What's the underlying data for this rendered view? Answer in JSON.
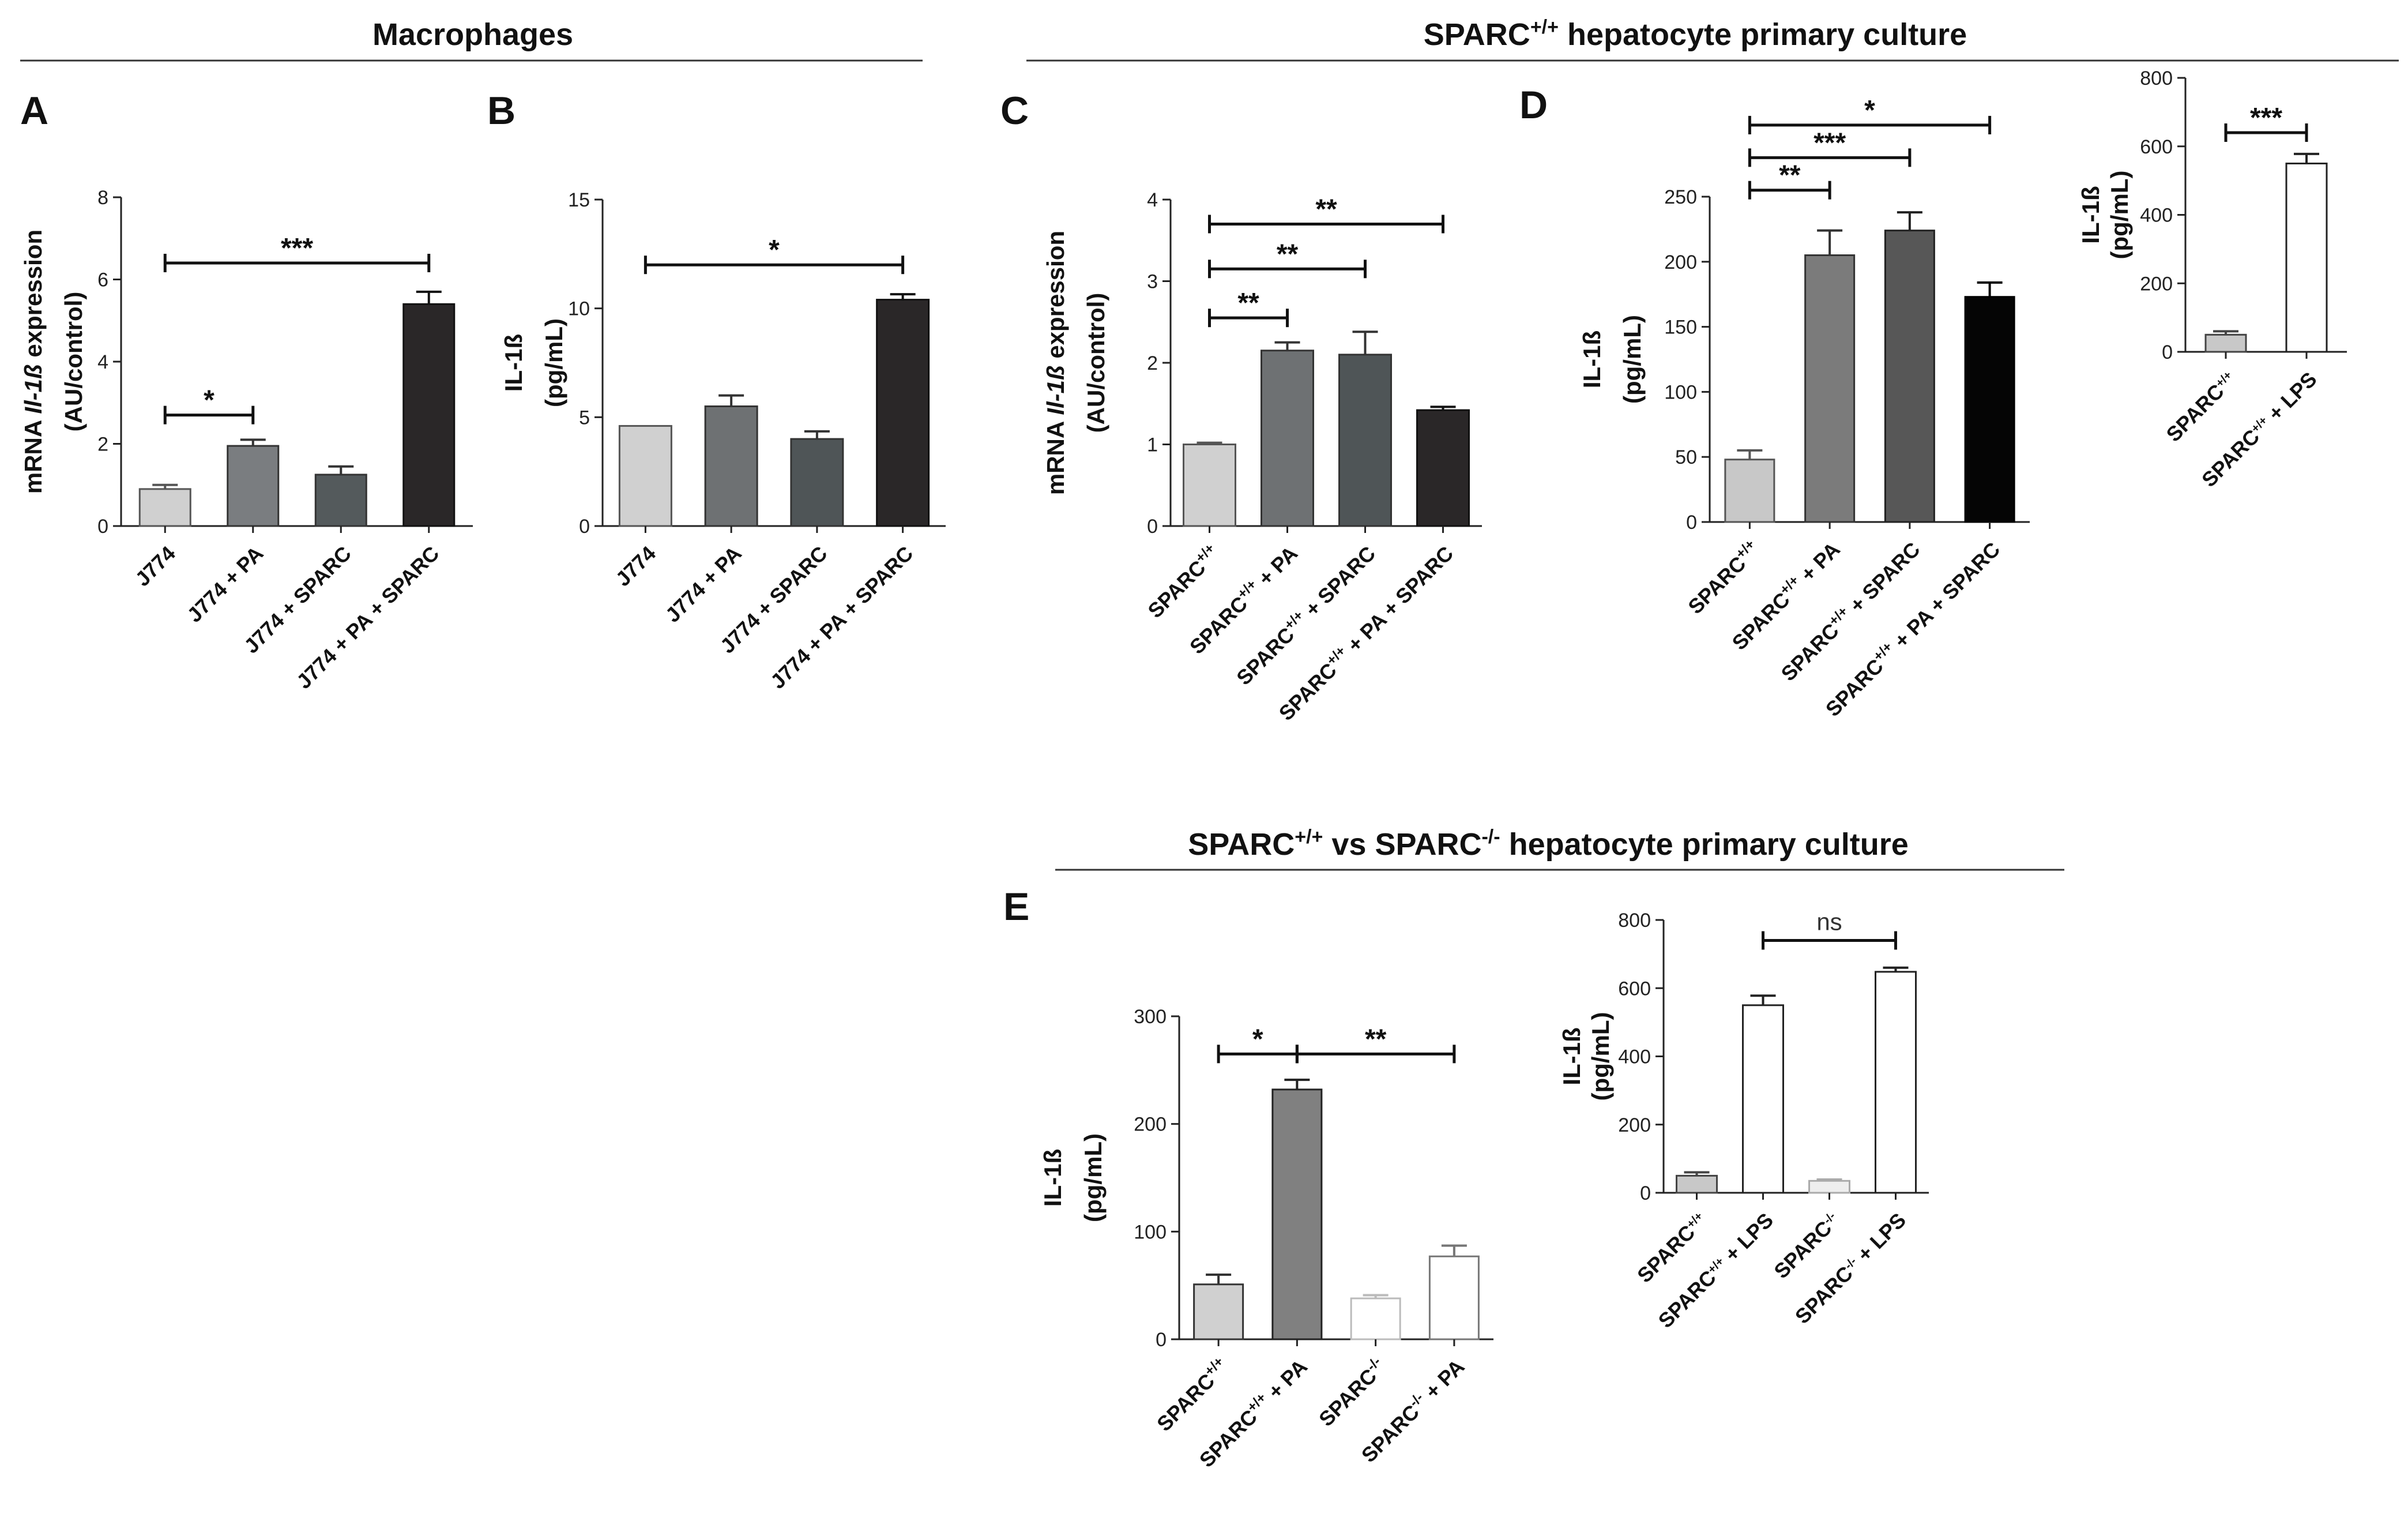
{
  "section_titles": {
    "macrophages": "Macrophages",
    "hepatocyte_pos": [
      "SPARC",
      "+/+",
      " hepatocyte primary culture"
    ],
    "hepatocyte_vs": [
      "SPARC",
      "+/+",
      " vs SPARC",
      "-/-",
      " hepatocyte primary culture"
    ]
  },
  "chart_data": [
    {
      "id": "A",
      "type": "bar",
      "panel_label": "A",
      "ylabel_lines": [
        [
          "mRNA ",
          "Il-1ß",
          " expression"
        ],
        [
          "(AU/control)"
        ]
      ],
      "ylim": [
        0,
        8
      ],
      "yticks": [
        0,
        2,
        4,
        6,
        8
      ],
      "categories": [
        [
          "J774"
        ],
        [
          "J774 + PA"
        ],
        [
          "J774 + SPARC"
        ],
        [
          "J774 + PA + SPARC"
        ]
      ],
      "values": [
        0.9,
        1.95,
        1.25,
        5.4
      ],
      "errors": [
        0.1,
        0.15,
        0.2,
        0.3
      ],
      "colors": [
        "#d0d0d0",
        "#7a7d80",
        "#545a5c",
        "#2a2728"
      ],
      "outline": [
        "#555",
        "#333",
        "#333",
        "#111"
      ],
      "significance": [
        {
          "from": 0,
          "to": 1,
          "y": 2.7,
          "label": "*"
        },
        {
          "from": 0,
          "to": 3,
          "y": 6.4,
          "label": "***"
        }
      ]
    },
    {
      "id": "B",
      "type": "bar",
      "panel_label": "B",
      "ylabel_lines": [
        [
          "IL-1ß"
        ],
        [
          "(pg/mL)"
        ]
      ],
      "ylim": [
        0,
        15
      ],
      "yticks": [
        0,
        5,
        10,
        15
      ],
      "categories": [
        [
          "J774"
        ],
        [
          "J774 + PA"
        ],
        [
          "J774 + SPARC"
        ],
        [
          "J774 + PA + SPARC"
        ]
      ],
      "values": [
        4.6,
        5.5,
        4.0,
        10.4
      ],
      "errors": [
        0.0,
        0.5,
        0.35,
        0.25
      ],
      "colors": [
        "#d0d0d0",
        "#6e7173",
        "#4f5557",
        "#2a2728"
      ],
      "outline": [
        "#555",
        "#333",
        "#333",
        "#111"
      ],
      "significance": [
        {
          "from": 0,
          "to": 3,
          "y": 12.0,
          "label": "*"
        }
      ]
    },
    {
      "id": "C",
      "type": "bar",
      "panel_label": "C",
      "ylabel_lines": [
        [
          "mRNA ",
          "Il-1ß",
          " expression"
        ],
        [
          "(AU/control)"
        ]
      ],
      "ylim": [
        0,
        4
      ],
      "yticks": [
        0,
        1,
        2,
        3,
        4
      ],
      "categories": [
        [
          "SPARC",
          "+/+",
          ""
        ],
        [
          "SPARC",
          "+/+",
          " + PA"
        ],
        [
          "SPARC",
          "+/+",
          " + SPARC"
        ],
        [
          "SPARC",
          "+/+",
          " + PA + SPARC"
        ]
      ],
      "values": [
        1.0,
        2.15,
        2.1,
        1.42
      ],
      "errors": [
        0.02,
        0.1,
        0.28,
        0.04
      ],
      "colors": [
        "#d0d0d0",
        "#6e7173",
        "#4f5557",
        "#2a2728"
      ],
      "outline": [
        "#555",
        "#333",
        "#333",
        "#111"
      ],
      "significance": [
        {
          "from": 0,
          "to": 1,
          "y": 2.55,
          "label": "**"
        },
        {
          "from": 0,
          "to": 2,
          "y": 3.15,
          "label": "**"
        },
        {
          "from": 0,
          "to": 3,
          "y": 3.7,
          "label": "**"
        }
      ]
    },
    {
      "id": "D",
      "type": "bar",
      "panel_label": "D",
      "ylabel_lines": [
        [
          "IL-1ß"
        ],
        [
          "(pg/mL)"
        ]
      ],
      "ylim": [
        0,
        250
      ],
      "yticks": [
        0,
        50,
        100,
        150,
        200,
        250
      ],
      "categories": [
        [
          "SPARC",
          "+/+",
          ""
        ],
        [
          "SPARC",
          "+/+",
          " + PA"
        ],
        [
          "SPARC",
          "+/+",
          " + SPARC"
        ],
        [
          "SPARC",
          "+/+",
          " + PA + SPARC"
        ]
      ],
      "values": [
        48,
        205,
        224,
        173
      ],
      "errors": [
        7,
        19,
        14,
        11
      ],
      "colors": [
        "#c8c8c8",
        "#7b7b7b",
        "#575757",
        "#050505"
      ],
      "outline": [
        "#555",
        "#333",
        "#222",
        "#000"
      ],
      "significance": [
        {
          "from": 0,
          "to": 1,
          "y": 255,
          "label": "**"
        },
        {
          "from": 0,
          "to": 2,
          "y": 280,
          "label": "***"
        },
        {
          "from": 0,
          "to": 3,
          "y": 305,
          "label": "*"
        }
      ]
    },
    {
      "id": "D_inset",
      "type": "bar",
      "panel_label": "",
      "ylabel_lines": [
        [
          "IL-1ß"
        ],
        [
          "(pg/mL)"
        ]
      ],
      "ylim": [
        0,
        800
      ],
      "yticks": [
        0,
        200,
        400,
        600,
        800
      ],
      "categories": [
        [
          "SPARC",
          "+/+",
          ""
        ],
        [
          "SPARC",
          "+/+",
          " + LPS"
        ]
      ],
      "values": [
        50,
        550
      ],
      "errors": [
        10,
        28
      ],
      "colors": [
        "#c8c8c8",
        "#ffffff"
      ],
      "outline": [
        "#444",
        "#222"
      ],
      "significance": [
        {
          "from": 0,
          "to": 1,
          "y": 640,
          "label": "***"
        }
      ]
    },
    {
      "id": "E",
      "type": "bar",
      "panel_label": "E",
      "ylabel_lines": [
        [
          "IL-1ß"
        ],
        [
          "(pg/mL)"
        ]
      ],
      "ylim": [
        0,
        300
      ],
      "yticks": [
        0,
        100,
        200,
        300
      ],
      "categories": [
        [
          "SPARC",
          "+/+",
          ""
        ],
        [
          "SPARC",
          "+/+",
          " + PA"
        ],
        [
          "SPARC",
          "-/-",
          ""
        ],
        [
          "SPARC",
          "-/-",
          " + PA"
        ]
      ],
      "values": [
        51,
        232,
        38,
        77
      ],
      "errors": [
        9,
        9,
        3,
        10
      ],
      "colors": [
        "#d0d0d0",
        "#808080",
        "#ffffff",
        "#ffffff"
      ],
      "outline": [
        "#333",
        "#222",
        "#bbbbbb",
        "#777777"
      ],
      "significance": [
        {
          "from": 0,
          "to": 1,
          "y": 265,
          "label": "*"
        },
        {
          "from": 1,
          "to": 3,
          "y": 265,
          "label": "**"
        }
      ]
    },
    {
      "id": "E_inset",
      "type": "bar",
      "panel_label": "",
      "ylabel_lines": [
        [
          "IL-1ß"
        ],
        [
          "(pg/mL)"
        ]
      ],
      "ylim": [
        0,
        800
      ],
      "yticks": [
        0,
        200,
        400,
        600,
        800
      ],
      "categories": [
        [
          "SPARC",
          "+/+",
          ""
        ],
        [
          "SPARC",
          "+/+",
          " + LPS"
        ],
        [
          "SPARC",
          "-/-",
          ""
        ],
        [
          "SPARC",
          "-/-",
          " + LPS"
        ]
      ],
      "values": [
        50,
        550,
        35,
        648
      ],
      "errors": [
        10,
        28,
        4,
        12
      ],
      "colors": [
        "#c8c8c8",
        "#ffffff",
        "#eeeeee",
        "#ffffff"
      ],
      "outline": [
        "#444",
        "#222",
        "#aaaaaa",
        "#222"
      ],
      "significance": [
        {
          "from": 1,
          "to": 3,
          "y": 740,
          "label": "ns"
        }
      ]
    }
  ]
}
